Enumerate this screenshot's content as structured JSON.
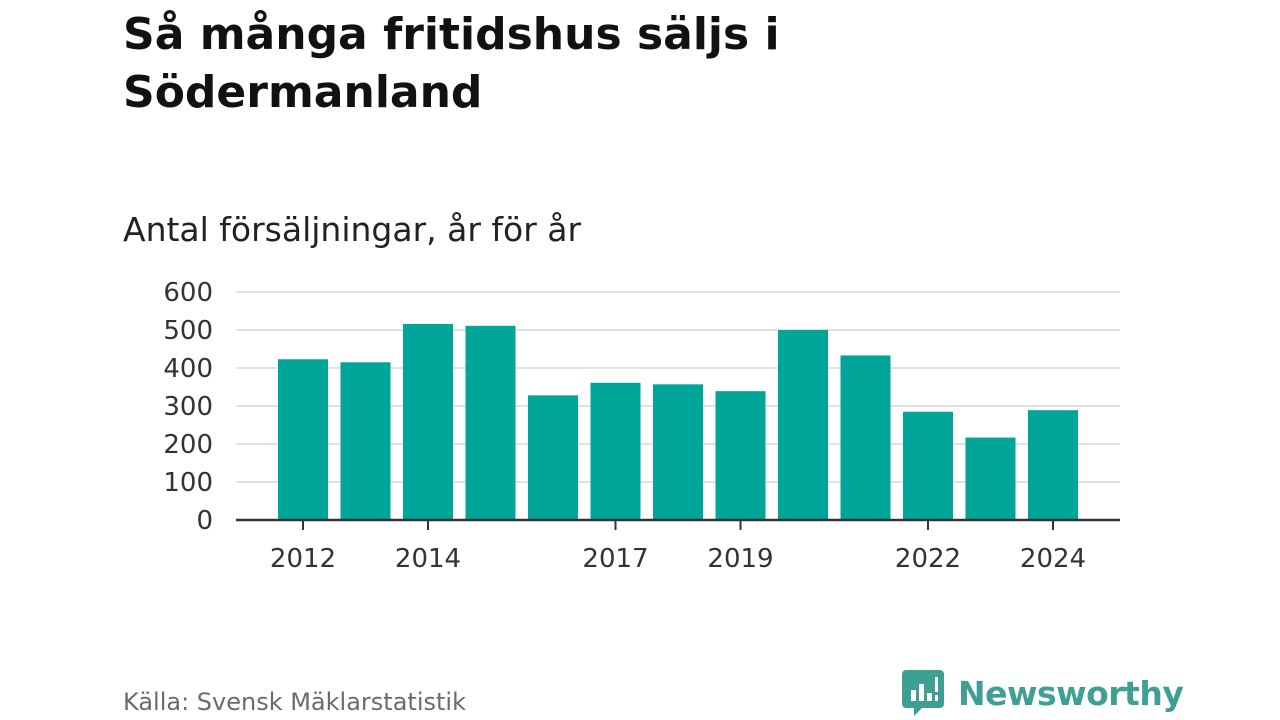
{
  "chart_data": {
    "type": "bar",
    "title": "Så många fritidshus säljs i Södermanland",
    "subtitle": "Antal försäljningar, år för år",
    "categories": [
      "2012",
      "2013",
      "2014",
      "2015",
      "2016",
      "2017",
      "2018",
      "2019",
      "2020",
      "2021",
      "2022",
      "2023",
      "2024"
    ],
    "x_tick_labels": [
      "2012",
      "2014",
      "2017",
      "2019",
      "2022",
      "2024"
    ],
    "values": [
      423,
      415,
      516,
      511,
      328,
      361,
      357,
      339,
      500,
      433,
      285,
      217,
      289
    ],
    "ylim": [
      0,
      600
    ],
    "y_ticks": [
      0,
      100,
      200,
      300,
      400,
      500,
      600
    ],
    "grid": true,
    "bar_color": "#00a59a",
    "xlabel": "",
    "ylabel": ""
  },
  "source": "Källa: Svensk Mäklarstatistik",
  "brand": {
    "name": "Newsworthy",
    "icon": "newsworthy-logo-icon",
    "color": "#3f9f95"
  }
}
